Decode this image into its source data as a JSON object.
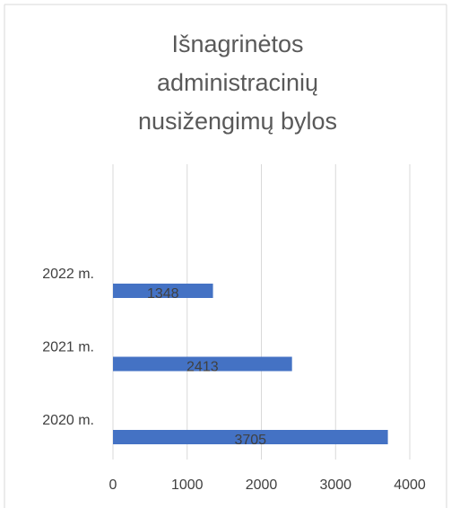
{
  "chart_data": {
    "type": "bar",
    "orientation": "horizontal",
    "title": "Išnagrinėtos administracinių nusižengimų bylos",
    "categories": [
      "2020 m.",
      "2021 m.",
      "2022 m."
    ],
    "values": [
      3705,
      2413,
      1348
    ],
    "color": "#4472c4",
    "xlim": [
      0,
      4000
    ],
    "xticks": [
      0,
      1000,
      2000,
      3000,
      4000
    ],
    "grid": true,
    "data_labels": true
  }
}
